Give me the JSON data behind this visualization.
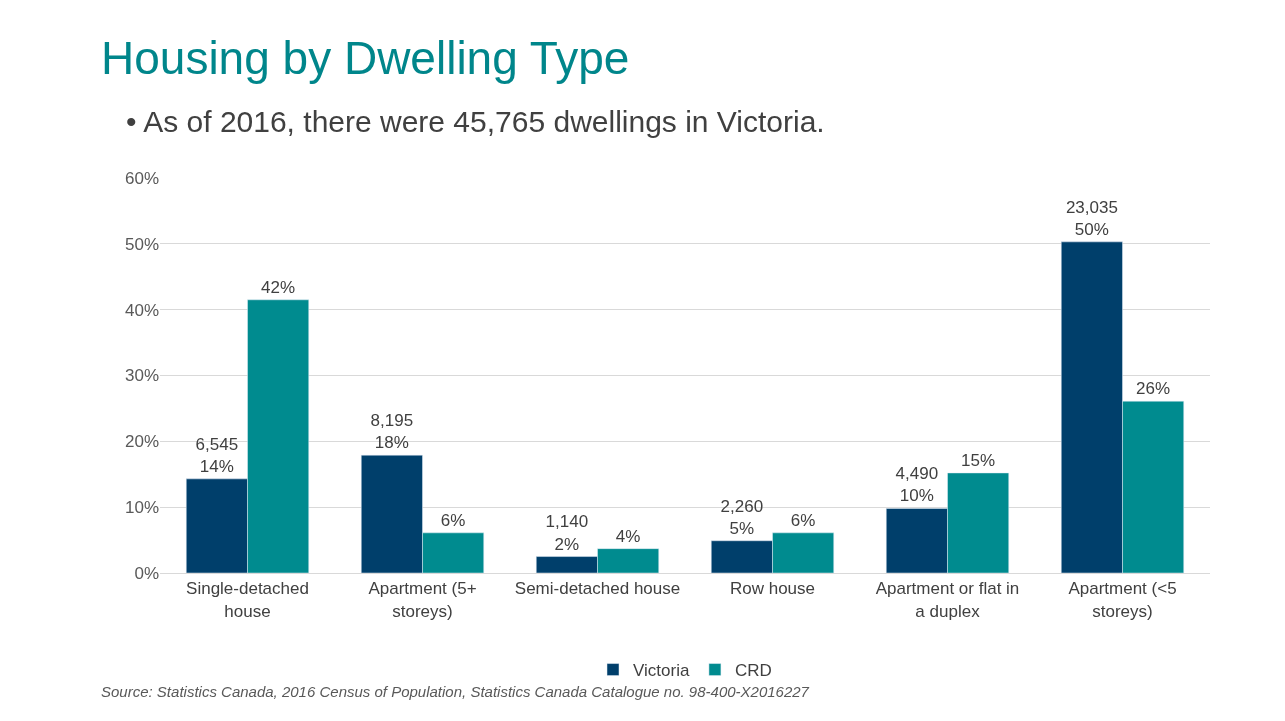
{
  "chart_data": {
    "type": "bar",
    "title": "Housing by Dwelling Type",
    "subtitle": "• As of 2016, there were 45,765 dwellings in Victoria.",
    "categories": [
      "Single-detached house",
      "Apartment (5+ storeys)",
      "Semi-detached house",
      "Row house",
      "Apartment or flat in a duplex",
      "Apartment (<5 storeys)"
    ],
    "series": [
      {
        "name": "Victoria",
        "color": "#003f6b",
        "values": [
          14.3,
          17.9,
          2.5,
          4.9,
          9.8,
          50.3
        ],
        "value_labels": [
          "6,545\n14%",
          "8,195\n18%",
          "1,140\n2%",
          "2,260\n5%",
          "4,490\n10%",
          "23,035\n50%"
        ]
      },
      {
        "name": "CRD",
        "color": "#008b8f",
        "values": [
          41.5,
          6.1,
          3.7,
          6.1,
          15.2,
          26.1
        ],
        "value_labels": [
          "42%",
          "6%",
          "4%",
          "6%",
          "15%",
          "26%"
        ]
      }
    ],
    "ylim": [
      0,
      60
    ],
    "yticks": [
      {
        "value": 0,
        "label": "0%"
      },
      {
        "value": 10,
        "label": "10%"
      },
      {
        "value": 20,
        "label": "20%"
      },
      {
        "value": 30,
        "label": "30%"
      },
      {
        "value": 40,
        "label": "40%"
      },
      {
        "value": 50,
        "label": "50%"
      },
      {
        "value": 60,
        "label": "60%"
      }
    ],
    "grid": "y",
    "legend": "bottom",
    "annotations": [
      "Source: Statistics Canada, 2016 Census of Population, Statistics Canada Catalogue no. 98-400-X2016227"
    ]
  }
}
